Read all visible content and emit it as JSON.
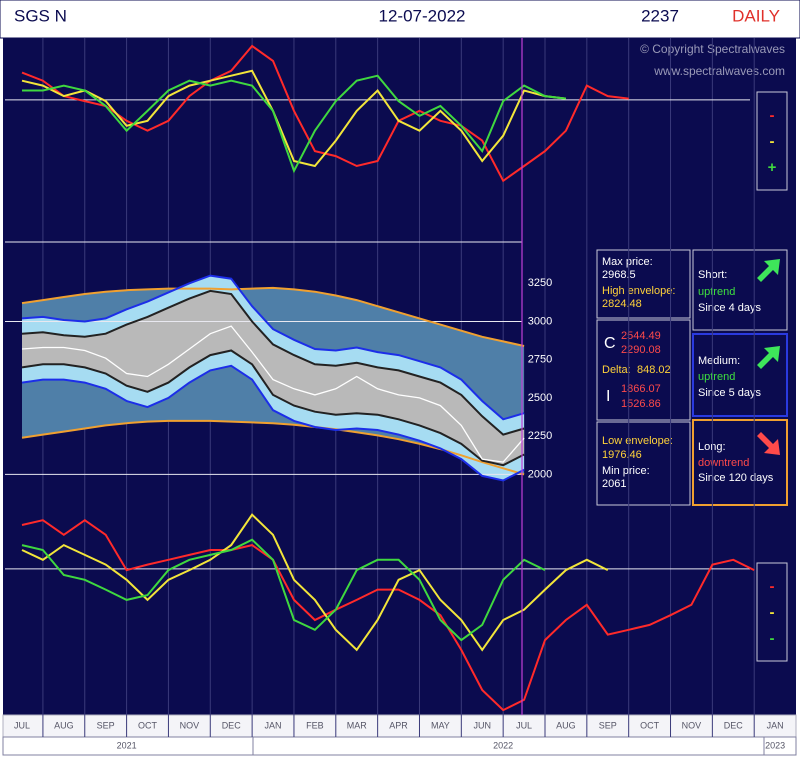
{
  "header": {
    "ticker": "SGS N",
    "date": "12-07-2022",
    "last_price": 2237,
    "period": "DAILY"
  },
  "copyright": [
    "© Copyright Spectralwaves",
    "www.spectralwaves.com"
  ],
  "info": {
    "max_label": "Max price:",
    "max_value": 2968.5,
    "high_env_label": "High envelope:",
    "high_env_value": 2824.48,
    "c_label": "C",
    "c_values": [
      2544.49,
      2290.08
    ],
    "delta_label": "Delta:",
    "delta_value": 848.02,
    "i_label": "I",
    "i_values": [
      1866.07,
      1526.86
    ],
    "low_env_label": "Low envelope:",
    "low_env_value": 1976.46,
    "min_label": "Min price:",
    "min_value": 2061
  },
  "trends": [
    {
      "label": "Short:",
      "direction": "uptrend",
      "since": "Since 4 days"
    },
    {
      "label": "Medium:",
      "direction": "uptrend",
      "since": "Since 5 days"
    },
    {
      "label": "Long:",
      "direction": "downtrend",
      "since": "Since 120 days"
    }
  ],
  "chart_data": [
    {
      "type": "line",
      "ylim": [
        -230,
        100
      ],
      "hline": 0,
      "series": [
        {
          "name": "-",
          "color": "#ff2a2a",
          "values": [
            44,
            31,
            6,
            -2,
            -10,
            -34,
            -50,
            -34,
            6,
            31,
            47,
            87,
            63,
            -18,
            -83,
            -91,
            -107,
            -99,
            -34,
            -18,
            -34,
            -42,
            -66,
            -131,
            -107,
            -83,
            -50,
            23,
            6,
            2,
            null,
            null,
            null,
            null,
            null,
            null,
            null
          ]
        },
        {
          "name": "-",
          "color": "#f2e53a",
          "values": [
            31,
            23,
            6,
            15,
            -2,
            -42,
            -34,
            6,
            23,
            31,
            39,
            47,
            -18,
            -99,
            -107,
            -66,
            -18,
            15,
            -34,
            -50,
            -18,
            -50,
            -99,
            -58,
            15,
            6,
            2,
            null,
            null,
            null,
            null,
            null,
            null,
            null,
            null,
            null,
            null
          ]
        },
        {
          "name": "+",
          "color": "#3fd83f",
          "values": [
            15,
            15,
            23,
            15,
            -10,
            -50,
            -18,
            15,
            31,
            23,
            31,
            23,
            -18,
            -115,
            -50,
            -2,
            31,
            39,
            -2,
            -26,
            -10,
            -42,
            -83,
            -2,
            23,
            6,
            2,
            null,
            null,
            null,
            null,
            null,
            null,
            null,
            null,
            null,
            null
          ]
        }
      ]
    },
    {
      "type": "band",
      "ylim": [
        1780,
        3520
      ],
      "yticks": [
        2000,
        2250,
        2500,
        2750,
        3000,
        3250
      ],
      "band_colors": [
        "#4f7fa8",
        "#a6dcf2",
        "#b9b9b9"
      ],
      "series": [
        {
          "color": "#f0a030",
          "values": [
            3120,
            3140,
            3160,
            3180,
            3195,
            3205,
            3210,
            3215,
            3215,
            3215,
            3210,
            3215,
            3220,
            3210,
            3195,
            3170,
            3140,
            3100,
            3060,
            3020,
            2980,
            2940,
            2900,
            2870,
            2840,
            null,
            null,
            null,
            null,
            null,
            null,
            null,
            null,
            null,
            null,
            null,
            null
          ]
        },
        {
          "color": "#f0a030",
          "values": [
            2240,
            2260,
            2280,
            2300,
            2320,
            2335,
            2345,
            2350,
            2350,
            2350,
            2345,
            2340,
            2335,
            2325,
            2310,
            2295,
            2275,
            2255,
            2230,
            2200,
            2165,
            2125,
            2080,
            2040,
            2000,
            null,
            null,
            null,
            null,
            null,
            null,
            null,
            null,
            null,
            null,
            null,
            null
          ]
        },
        {
          "color": "#1c2ee8",
          "values": [
            3020,
            3030,
            3010,
            3000,
            3020,
            3080,
            3130,
            3190,
            3250,
            3300,
            3280,
            3100,
            2950,
            2880,
            2820,
            2810,
            2830,
            2800,
            2780,
            2740,
            2700,
            2620,
            2480,
            2360,
            2400,
            null,
            null,
            null,
            null,
            null,
            null,
            null,
            null,
            null,
            null,
            null,
            null
          ]
        },
        {
          "color": "#1c2ee8",
          "values": [
            2600,
            2620,
            2620,
            2600,
            2560,
            2480,
            2440,
            2500,
            2600,
            2680,
            2710,
            2620,
            2420,
            2350,
            2310,
            2290,
            2300,
            2290,
            2260,
            2220,
            2170,
            2100,
            1990,
            1960,
            2030,
            null,
            null,
            null,
            null,
            null,
            null,
            null,
            null,
            null,
            null,
            null,
            null
          ]
        },
        {
          "color": "#222222",
          "values": [
            2920,
            2930,
            2910,
            2900,
            2920,
            2980,
            3030,
            3090,
            3150,
            3200,
            3180,
            3000,
            2850,
            2780,
            2720,
            2710,
            2730,
            2700,
            2680,
            2640,
            2600,
            2520,
            2380,
            2260,
            2300,
            null,
            null,
            null,
            null,
            null,
            null,
            null,
            null,
            null,
            null,
            null,
            null
          ]
        },
        {
          "color": "#222222",
          "values": [
            2700,
            2720,
            2720,
            2700,
            2660,
            2580,
            2540,
            2600,
            2700,
            2780,
            2810,
            2720,
            2520,
            2450,
            2410,
            2390,
            2400,
            2390,
            2360,
            2320,
            2270,
            2200,
            2090,
            2060,
            2130,
            null,
            null,
            null,
            null,
            null,
            null,
            null,
            null,
            null,
            null,
            null,
            null
          ]
        },
        {
          "color": "#ffffff",
          "values": [
            2820,
            2830,
            2830,
            2810,
            2760,
            2660,
            2640,
            2720,
            2820,
            2920,
            2970,
            2800,
            2620,
            2560,
            2520,
            2560,
            2640,
            2560,
            2520,
            2500,
            2450,
            2320,
            2100,
            2080,
            2237,
            null,
            null,
            null,
            null,
            null,
            null,
            null,
            null,
            null,
            null,
            null,
            null
          ]
        }
      ]
    },
    {
      "type": "line",
      "ylim": [
        -240,
        100
      ],
      "hline": 0,
      "categories": [
        "JUL",
        null,
        "AUG",
        null,
        "SEP",
        null,
        "OCT",
        null,
        "NOV",
        null,
        "DEC",
        null,
        "JAN",
        null,
        "FEB",
        null,
        "MAR",
        null,
        "APR",
        null,
        "MAY",
        null,
        "JUN",
        null,
        "JUL",
        null,
        "AUG",
        null,
        "SEP",
        null,
        "OCT",
        null,
        "NOV",
        null,
        "DEC",
        null,
        "JAN"
      ],
      "years": [
        "2021",
        "2022",
        "2023"
      ],
      "series": [
        {
          "name": "-",
          "color": "#ff2a2a",
          "values": [
            72,
            80,
            56,
            80,
            56,
            -2,
            7,
            15,
            23,
            31,
            31,
            39,
            15,
            -51,
            -84,
            -67,
            -51,
            -34,
            -34,
            -51,
            -76,
            -133,
            -199,
            -232,
            -215,
            -117,
            -84,
            -59,
            -108,
            -100,
            -92,
            -76,
            -59,
            7,
            15,
            -2,
            null
          ]
        },
        {
          "name": "-",
          "color": "#f2e53a",
          "values": [
            31,
            15,
            39,
            23,
            7,
            -18,
            -51,
            -18,
            -2,
            15,
            39,
            89,
            56,
            -18,
            -51,
            -100,
            -133,
            -84,
            -18,
            -2,
            -51,
            -84,
            -133,
            -84,
            -67,
            -34,
            -2,
            15,
            -2,
            null,
            null,
            null,
            null,
            null,
            null,
            null,
            null
          ]
        },
        {
          "name": "-",
          "color": "#3fd83f",
          "values": [
            39,
            31,
            -10,
            -18,
            -34,
            -51,
            -43,
            -2,
            15,
            23,
            31,
            48,
            15,
            -84,
            -100,
            -67,
            -2,
            15,
            15,
            -18,
            -84,
            -117,
            -92,
            -18,
            15,
            -2,
            null,
            null,
            null,
            null,
            null,
            null,
            null,
            null,
            null,
            null,
            null
          ]
        }
      ]
    }
  ]
}
